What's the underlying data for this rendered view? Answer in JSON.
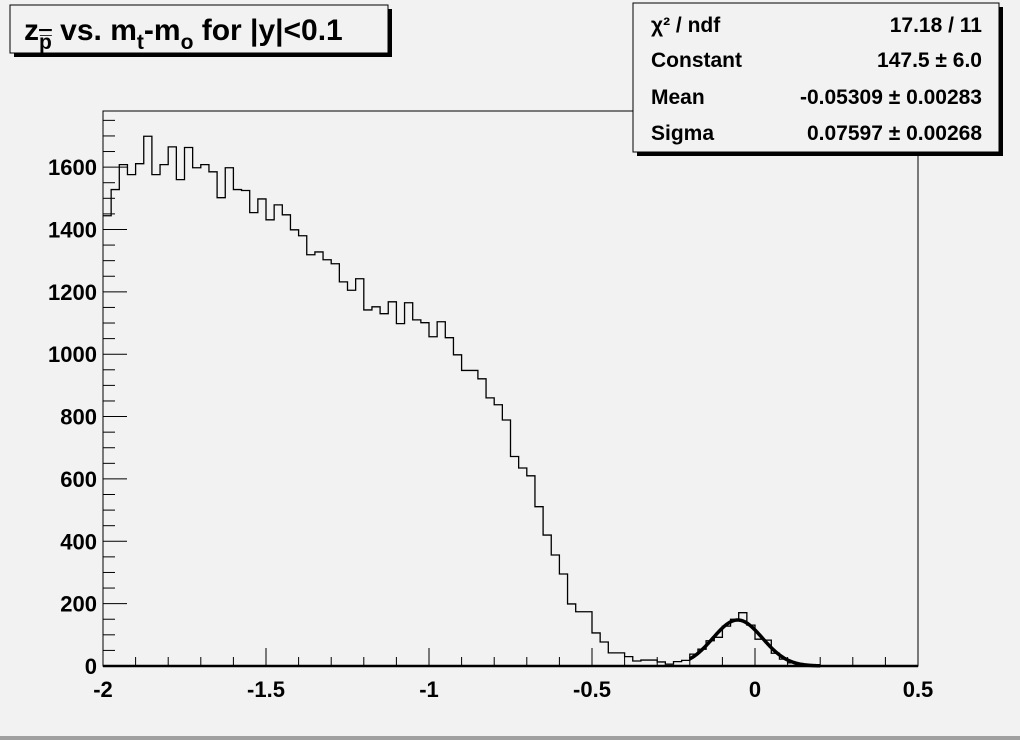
{
  "chart_data": {
    "type": "bar",
    "histogram": true,
    "title_parts": {
      "z": "z",
      "z_sub": "p̅",
      "mid": " vs. m",
      "m_sub": "t",
      "minus": "-m",
      "o_sub": "o",
      "tail": " for |y|<0.1"
    },
    "xlim": [
      -2,
      0.5
    ],
    "ylim": [
      0,
      1780
    ],
    "bin_width": 0.025,
    "x_ticks": [
      -2,
      -1.5,
      -1,
      -0.5,
      0,
      0.5
    ],
    "x_tick_labels": [
      "-2",
      "-1.5",
      "-1",
      "-0.5",
      "0",
      "0.5"
    ],
    "y_ticks": [
      0,
      200,
      400,
      600,
      800,
      1000,
      1200,
      1400,
      1600
    ],
    "y_tick_labels": [
      "0",
      "200",
      "400",
      "600",
      "800",
      "1000",
      "1200",
      "1400",
      "1600"
    ],
    "grid": false,
    "values": [
      1444,
      1528,
      1608,
      1576,
      1611,
      1699,
      1576,
      1608,
      1665,
      1560,
      1663,
      1598,
      1608,
      1585,
      1502,
      1598,
      1528,
      1525,
      1454,
      1498,
      1431,
      1479,
      1447,
      1399,
      1380,
      1319,
      1328,
      1303,
      1290,
      1232,
      1205,
      1242,
      1142,
      1152,
      1130,
      1168,
      1098,
      1165,
      1110,
      1101,
      1056,
      1104,
      1053,
      998,
      948,
      948,
      921,
      860,
      838,
      789,
      672,
      635,
      610,
      511,
      420,
      356,
      295,
      199,
      174,
      174,
      106,
      77,
      42,
      42,
      30,
      16,
      19,
      19,
      13,
      6,
      14,
      18,
      38,
      54,
      81,
      92,
      128,
      150,
      171,
      131,
      86,
      83,
      41,
      22,
      10,
      5,
      2,
      0,
      0,
      0,
      0,
      0,
      0,
      0,
      0,
      0,
      0,
      0,
      0,
      0
    ],
    "fit": {
      "function": "gaus",
      "range": [
        -0.2,
        0.2
      ],
      "constant": 147.5,
      "mean": -0.05309,
      "sigma": 0.07597
    },
    "stats_box": {
      "placement": "top-right",
      "rows": [
        {
          "label": "χ² / ndf",
          "value": "17.18 / 11"
        },
        {
          "label": "Constant",
          "value": "147.5 ± 6.0"
        },
        {
          "label": "Mean",
          "value": "-0.05309 ± 0.00283"
        },
        {
          "label": "Sigma",
          "value": "0.07597 ± 0.00268"
        }
      ]
    }
  }
}
